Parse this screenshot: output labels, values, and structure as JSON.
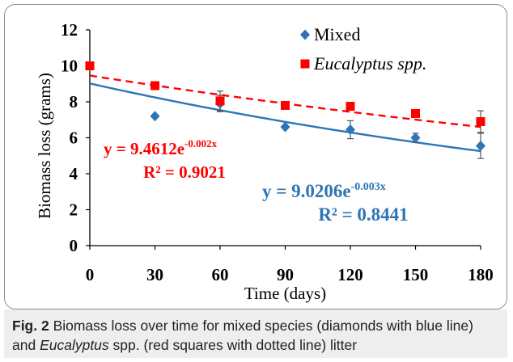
{
  "chart_data": {
    "type": "scatter",
    "xlabel": "Time (days)",
    "ylabel": "Biomass loss (grams)",
    "xlim": [
      0,
      180
    ],
    "ylim": [
      0,
      12
    ],
    "x_ticks": [
      0,
      30,
      60,
      90,
      120,
      150,
      180
    ],
    "y_ticks": [
      0,
      2,
      4,
      6,
      8,
      10,
      12
    ],
    "grid": false,
    "legend_position": "top-right",
    "series": [
      {
        "name": "Mixed",
        "marker": "diamond",
        "color": "#2e75b6",
        "x": [
          0,
          30,
          60,
          90,
          120,
          150,
          180
        ],
        "y": [
          10.0,
          7.2,
          7.9,
          6.6,
          6.45,
          6.0,
          5.55
        ],
        "error": [
          0.0,
          0.0,
          0.45,
          0.0,
          0.5,
          0.25,
          0.7
        ],
        "trendline": {
          "type": "exponential",
          "a": 9.0206,
          "b": -0.003,
          "style": "solid"
        },
        "equation_prefix": "y = ",
        "equation_base": "9.0206e",
        "equation_exponent": "-0.003x",
        "r2_text": "R² = 0.8441"
      },
      {
        "name": "Eucalyptus spp.",
        "marker": "square",
        "color": "#ff0000",
        "x": [
          0,
          30,
          60,
          90,
          120,
          150,
          180
        ],
        "y": [
          10.0,
          8.9,
          8.05,
          7.8,
          7.75,
          7.35,
          6.9
        ],
        "error": [
          0.0,
          0.0,
          0.55,
          0.0,
          0.0,
          0.0,
          0.6
        ],
        "trendline": {
          "type": "exponential",
          "a": 9.4612,
          "b": -0.002,
          "style": "dashed"
        },
        "equation_prefix": "y = ",
        "equation_base": "9.4612e",
        "equation_exponent": "-0.002x",
        "r2_text": "R² = 0.9021"
      }
    ]
  },
  "caption": {
    "label": "Fig. 2",
    "text_before": " Biomass loss over time for mixed species (diamonds with blue line) and ",
    "italic_term": "Eucalyptus",
    "text_after": " spp. (red squares with dotted line) litter"
  }
}
